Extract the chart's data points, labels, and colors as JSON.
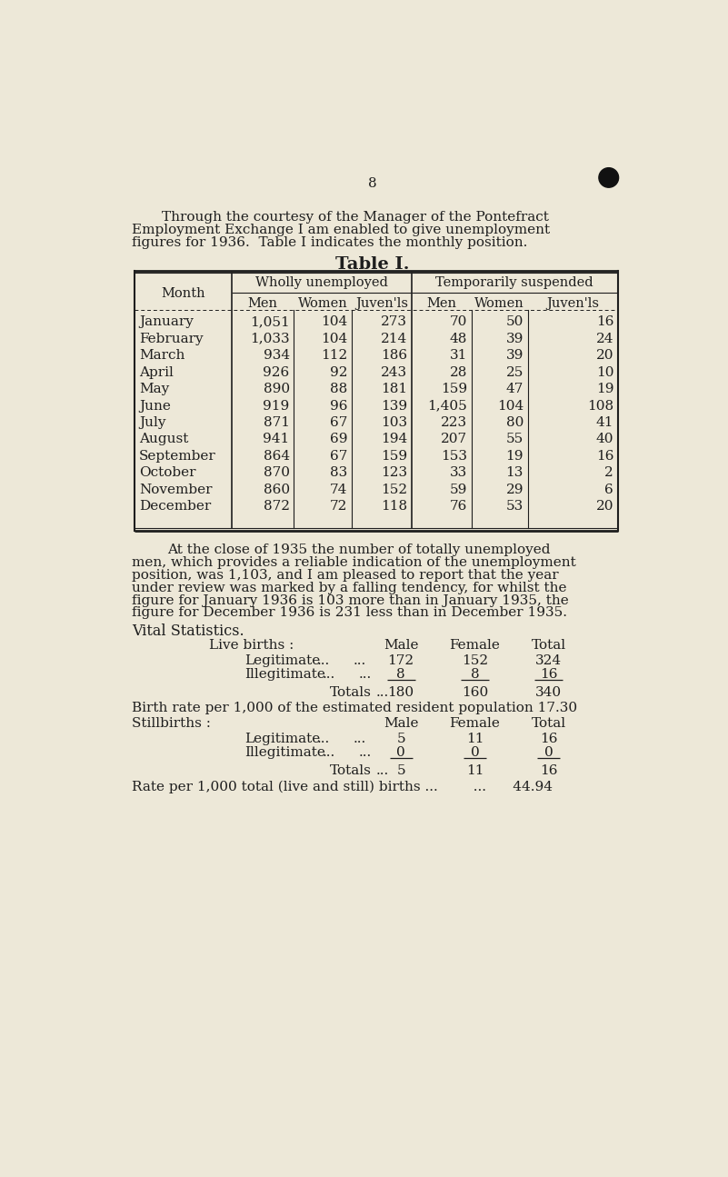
{
  "bg_color": "#ede8d8",
  "text_color": "#1e1e1e",
  "page_number": "8",
  "intro_lines": [
    "Through the courtesy of the Manager of the Pontefract",
    "Employment Exchange I am enabled to give unemployment",
    "figures for 1936.  Table I indicates the monthly position."
  ],
  "table_title": "Table I.",
  "months": [
    "January",
    "February",
    "March",
    "April",
    "May",
    "June",
    "July",
    "August",
    "September",
    "October",
    "November",
    "December"
  ],
  "wholly_men": [
    1051,
    1033,
    934,
    926,
    890,
    919,
    871,
    941,
    864,
    870,
    860,
    872
  ],
  "wholly_women": [
    104,
    104,
    112,
    92,
    88,
    96,
    67,
    69,
    67,
    83,
    74,
    72
  ],
  "wholly_juv": [
    273,
    214,
    186,
    243,
    181,
    139,
    103,
    194,
    159,
    123,
    152,
    118
  ],
  "temp_men": [
    70,
    48,
    31,
    28,
    159,
    1405,
    223,
    207,
    153,
    33,
    59,
    76
  ],
  "temp_women": [
    50,
    39,
    39,
    25,
    47,
    104,
    80,
    55,
    19,
    13,
    29,
    53
  ],
  "temp_juv": [
    16,
    24,
    20,
    10,
    19,
    108,
    41,
    40,
    16,
    2,
    6,
    20
  ],
  "closing_lines": [
    "At the close of 1935 the number of totally unemployed",
    "men, which provides a reliable indication of the unemployment",
    "position, was 1,103, and I am pleased to report that the year",
    "under review was marked by a falling tendency, for whilst the",
    "figure for January 1936 is 103 more than in January 1935, the",
    "figure for December 1936 is 231 less than in December 1935."
  ],
  "vital_stats_title": "Vital Statistics.",
  "live_births_label": "Live births :",
  "lb_leg_male": 172,
  "lb_leg_female": 152,
  "lb_leg_total": 324,
  "lb_ill_male": 8,
  "lb_ill_female": 8,
  "lb_ill_total": 16,
  "lb_tot_male": 180,
  "lb_tot_female": 160,
  "lb_tot_total": 340,
  "birth_rate_text": "Birth rate per 1,000 of the estimated resident population 17.30",
  "stillbirths_label": "Stillbirths :",
  "sb_leg_male": 5,
  "sb_leg_female": 11,
  "sb_leg_total": 16,
  "sb_ill_male": 0,
  "sb_ill_female": 0,
  "sb_ill_total": 0,
  "sb_tot_male": 5,
  "sb_tot_female": 11,
  "sb_tot_total": 16,
  "rate_text": "Rate per 1,000 total (live and still) births ...        ...      44.94"
}
